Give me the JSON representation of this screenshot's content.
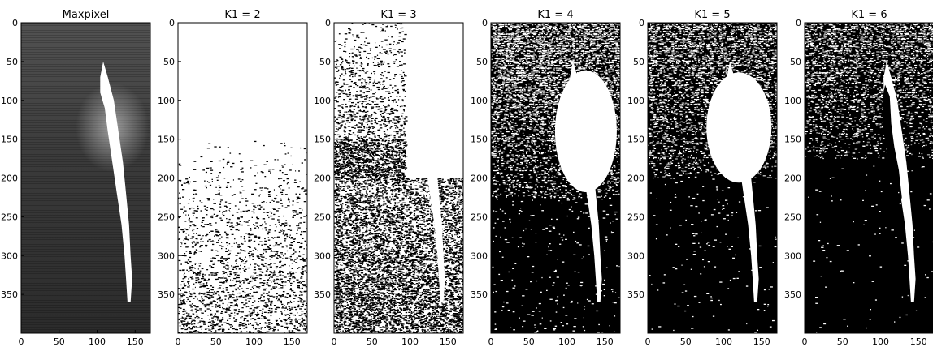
{
  "chart_data": {
    "type": "heatmap",
    "x_ticks": [
      "0",
      "50",
      "100",
      "150"
    ],
    "y_ticks": [
      "0",
      "50",
      "100",
      "150",
      "200",
      "250",
      "300",
      "350"
    ],
    "xlim": [
      0,
      170
    ],
    "ylim": [
      400,
      0
    ],
    "panels": [
      {
        "title": "Maxpixel",
        "mode": "grayscale"
      },
      {
        "title": "K1 = 2",
        "mode": "binary",
        "threshold": 2
      },
      {
        "title": "K1 = 3",
        "mode": "binary",
        "threshold": 3
      },
      {
        "title": "K1 = 4",
        "mode": "binary",
        "threshold": 4
      },
      {
        "title": "K1 = 5",
        "mode": "binary",
        "threshold": 5
      },
      {
        "title": "K1 = 6",
        "mode": "binary",
        "threshold": 6
      }
    ]
  }
}
